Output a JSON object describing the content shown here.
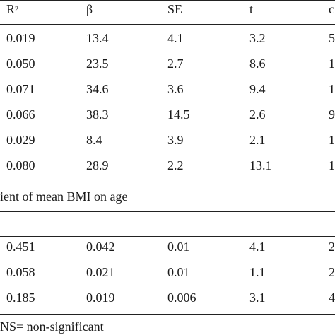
{
  "table": {
    "header": {
      "r2": "R",
      "r2_sup": "2",
      "beta": "β",
      "se": "SE",
      "t": "t",
      "cut": "c"
    },
    "upper_rows": [
      {
        "r2": "0.019",
        "beta": "13.4",
        "se": "4.1",
        "t": "3.2",
        "cut": "5"
      },
      {
        "r2": "0.050",
        "beta": "23.5",
        "se": "2.7",
        "t": "8.6",
        "cut": "1"
      },
      {
        "r2": "0.071",
        "beta": "34.6",
        "se": "3.6",
        "t": "9.4",
        "cut": "1"
      },
      {
        "r2": "0.066",
        "beta": "38.3",
        "se": "14.5",
        "t": "2.6",
        "cut": "9"
      },
      {
        "r2": "0.029",
        "beta": "8.4",
        "se": "3.9",
        "t": "2.1",
        "cut": "1"
      },
      {
        "r2": "0.080",
        "beta": "28.9",
        "se": "2.2",
        "t": "13.1",
        "cut": "1"
      }
    ],
    "section_caption": "ient of mean BMI on age",
    "lower_rows": [
      {
        "r2": "0.451",
        "beta": "0.042",
        "se": "0.01",
        "t": "4.1",
        "cut": "2"
      },
      {
        "r2": "0.058",
        "beta": "0.021",
        "se": "0.01",
        "t": "1.1",
        "cut": "2"
      },
      {
        "r2": "0.185",
        "beta": "0.019",
        "se": "0.006",
        "t": "3.1",
        "cut": "4"
      }
    ],
    "footnote": "NS= non-significant"
  }
}
